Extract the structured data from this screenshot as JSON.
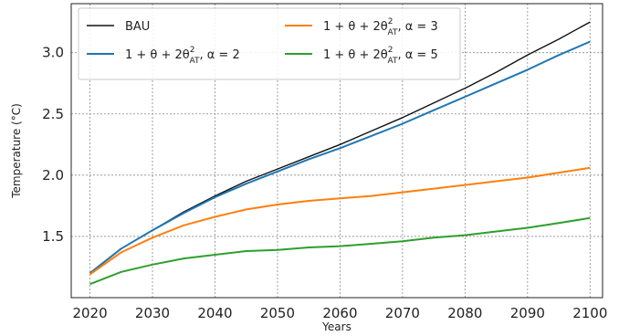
{
  "chart_data": {
    "type": "line",
    "xlabel": "Years",
    "ylabel": "Temperature (°C)",
    "xlim": [
      2017,
      2102
    ],
    "ylim": [
      1.0,
      3.4
    ],
    "grid": true,
    "legend_placement": "top-left",
    "x_ticks": [
      2020,
      2030,
      2040,
      2050,
      2060,
      2070,
      2080,
      2090,
      2100
    ],
    "x_tick_labels": [
      "2020",
      "2030",
      "2040",
      "2050",
      "2060",
      "2070",
      "2080",
      "2090",
      "2100"
    ],
    "y_ticks": [
      1.5,
      2.0,
      2.5,
      3.0
    ],
    "y_tick_labels": [
      "1.5",
      "2.0",
      "2.5",
      "3.0"
    ],
    "x": [
      2020,
      2025,
      2030,
      2035,
      2040,
      2045,
      2050,
      2055,
      2060,
      2065,
      2070,
      2075,
      2080,
      2085,
      2090,
      2095,
      2100
    ],
    "series": [
      {
        "legend": {
          "main": "BAU",
          "sup": "",
          "sub": "",
          "suffix": ""
        },
        "color": "#111111",
        "values": [
          1.2,
          1.4,
          1.55,
          1.7,
          1.83,
          1.95,
          2.05,
          2.15,
          2.25,
          2.36,
          2.47,
          2.59,
          2.71,
          2.84,
          2.98,
          3.11,
          3.25
        ]
      },
      {
        "legend": {
          "main": "1 + θ + 2θ",
          "sup": "2",
          "sub": "AT",
          "suffix": ", α = 2"
        },
        "color": "#1f77b4",
        "values": [
          1.2,
          1.4,
          1.55,
          1.69,
          1.82,
          1.93,
          2.03,
          2.13,
          2.22,
          2.32,
          2.42,
          2.53,
          2.64,
          2.75,
          2.86,
          2.98,
          3.09
        ]
      },
      {
        "legend": {
          "main": "1 + θ + 2θ",
          "sup": "2",
          "sub": "AT",
          "suffix": ", α = 3"
        },
        "color": "#ff7f0e",
        "values": [
          1.19,
          1.37,
          1.49,
          1.59,
          1.66,
          1.72,
          1.76,
          1.79,
          1.81,
          1.83,
          1.86,
          1.89,
          1.92,
          1.95,
          1.98,
          2.02,
          2.06
        ]
      },
      {
        "legend": {
          "main": "1 + θ + 2θ",
          "sup": "2",
          "sub": "AT",
          "suffix": ", α = 5"
        },
        "color": "#2ca02c",
        "values": [
          1.11,
          1.21,
          1.27,
          1.32,
          1.35,
          1.38,
          1.39,
          1.41,
          1.42,
          1.44,
          1.46,
          1.49,
          1.51,
          1.54,
          1.57,
          1.61,
          1.65
        ]
      }
    ]
  }
}
